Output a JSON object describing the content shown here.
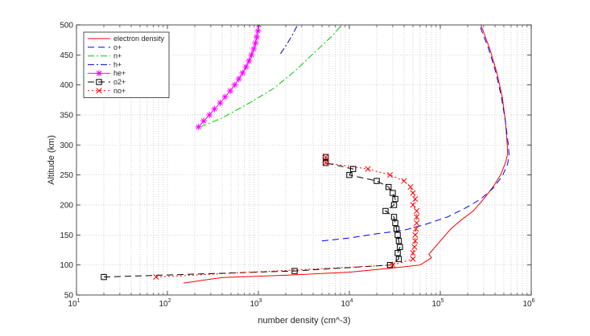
{
  "chart_data": {
    "type": "line",
    "title": "",
    "xlabel": "number density (cm^-3)",
    "ylabel": "Altitude (km)",
    "x_scale": "log",
    "xlim": [
      10,
      1000000
    ],
    "ylim": [
      50,
      500
    ],
    "x_ticks": [
      {
        "value": 10,
        "mantissa": "10",
        "exp": "1"
      },
      {
        "value": 100,
        "mantissa": "10",
        "exp": "2"
      },
      {
        "value": 1000,
        "mantissa": "10",
        "exp": "3"
      },
      {
        "value": 10000,
        "mantissa": "10",
        "exp": "4"
      },
      {
        "value": 100000,
        "mantissa": "10",
        "exp": "5"
      },
      {
        "value": 1000000,
        "mantissa": "10",
        "exp": "6"
      }
    ],
    "y_ticks": [
      "50",
      "100",
      "150",
      "200",
      "250",
      "300",
      "350",
      "400",
      "450",
      "500"
    ],
    "grid": "dotted, x major and minor",
    "legend_position": "top-left",
    "series": [
      {
        "name": "electron density",
        "color": "#ff0000",
        "dash": "solid",
        "marker": "none",
        "points": [
          [
            150,
            70
          ],
          [
            400,
            79
          ],
          [
            2000,
            83
          ],
          [
            10000,
            88
          ],
          [
            30000,
            95
          ],
          [
            60000,
            100
          ],
          [
            80000,
            112
          ],
          [
            75000,
            118
          ],
          [
            100000,
            140
          ],
          [
            130000,
            160
          ],
          [
            170000,
            175
          ],
          [
            230000,
            190
          ],
          [
            300000,
            210
          ],
          [
            380000,
            230
          ],
          [
            460000,
            250
          ],
          [
            520000,
            270
          ],
          [
            550000,
            285
          ],
          [
            545000,
            300
          ],
          [
            520000,
            340
          ],
          [
            480000,
            380
          ],
          [
            420000,
            420
          ],
          [
            350000,
            460
          ],
          [
            280000,
            500
          ]
        ]
      },
      {
        "name": "o+",
        "color": "#0000ff",
        "dash": "8,5",
        "marker": "none",
        "points": [
          [
            5000,
            140
          ],
          [
            10000,
            145
          ],
          [
            20000,
            152
          ],
          [
            40000,
            158
          ],
          [
            70000,
            168
          ],
          [
            120000,
            180
          ],
          [
            190000,
            195
          ],
          [
            280000,
            210
          ],
          [
            380000,
            228
          ],
          [
            480000,
            248
          ],
          [
            550000,
            268
          ],
          [
            570000,
            285
          ],
          [
            560000,
            300
          ],
          [
            520000,
            340
          ],
          [
            470000,
            380
          ],
          [
            410000,
            420
          ],
          [
            340000,
            460
          ],
          [
            270000,
            500
          ]
        ]
      },
      {
        "name": "n+",
        "color": "#00cc00",
        "dash": "8,3,2,3",
        "marker": "none",
        "points": [
          [
            230,
            330
          ],
          [
            400,
            345
          ],
          [
            800,
            370
          ],
          [
            1500,
            395
          ],
          [
            2600,
            425
          ],
          [
            4200,
            455
          ],
          [
            6300,
            480
          ],
          [
            8300,
            500
          ]
        ]
      },
      {
        "name": "h+",
        "color": "#0000cc",
        "dash": "8,3,2,3",
        "marker": "none",
        "points": [
          [
            1750,
            452
          ],
          [
            2000,
            465
          ],
          [
            2300,
            480
          ],
          [
            2700,
            500
          ]
        ]
      },
      {
        "name": "he+",
        "color": "#ff00ff",
        "dash": "solid",
        "marker": "star",
        "points": [
          [
            220,
            330
          ],
          [
            250,
            340
          ],
          [
            290,
            350
          ],
          [
            330,
            360
          ],
          [
            380,
            370
          ],
          [
            430,
            380
          ],
          [
            490,
            390
          ],
          [
            550,
            400
          ],
          [
            610,
            410
          ],
          [
            670,
            420
          ],
          [
            730,
            430
          ],
          [
            790,
            440
          ],
          [
            840,
            450
          ],
          [
            890,
            460
          ],
          [
            930,
            470
          ],
          [
            960,
            480
          ],
          [
            990,
            490
          ],
          [
            1010,
            500
          ]
        ]
      },
      {
        "name": "o2+",
        "color": "#000000",
        "dash": "8,5",
        "marker": "square",
        "points": [
          [
            20,
            80
          ],
          [
            2500,
            90
          ],
          [
            28000,
            100
          ],
          [
            35000,
            110
          ],
          [
            34000,
            120
          ],
          [
            36000,
            130
          ],
          [
            35000,
            140
          ],
          [
            34000,
            150
          ],
          [
            33000,
            160
          ],
          [
            32000,
            170
          ],
          [
            31000,
            180
          ],
          [
            25000,
            190
          ],
          [
            31000,
            200
          ],
          [
            32000,
            210
          ],
          [
            30000,
            220
          ],
          [
            27000,
            230
          ],
          [
            20000,
            240
          ],
          [
            10000,
            250
          ],
          [
            11000,
            260
          ],
          [
            5500,
            270
          ],
          [
            5500,
            280
          ]
        ]
      },
      {
        "name": "no+",
        "color": "#ff0000",
        "dash": "2,3",
        "marker": "x",
        "points": [
          [
            75,
            80
          ],
          [
            30000,
            100
          ],
          [
            50000,
            110
          ],
          [
            50000,
            120
          ],
          [
            52000,
            130
          ],
          [
            53000,
            140
          ],
          [
            53000,
            150
          ],
          [
            54000,
            160
          ],
          [
            55000,
            170
          ],
          [
            55000,
            180
          ],
          [
            55000,
            190
          ],
          [
            50000,
            200
          ],
          [
            53000,
            210
          ],
          [
            50000,
            220
          ],
          [
            47000,
            230
          ],
          [
            40000,
            240
          ],
          [
            28000,
            250
          ],
          [
            16000,
            260
          ],
          [
            5500,
            270
          ],
          [
            5500,
            280
          ]
        ]
      }
    ]
  }
}
